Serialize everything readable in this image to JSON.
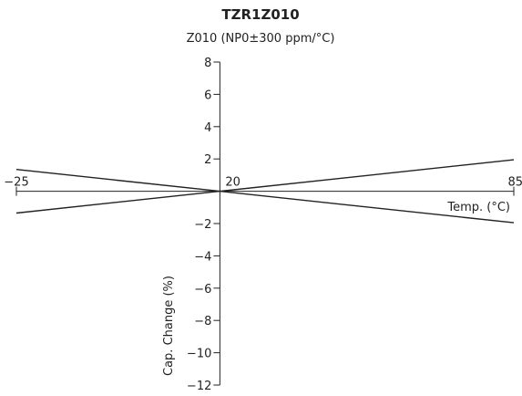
{
  "chart_data": {
    "type": "line",
    "title": "TZR1Z010",
    "subtitle": "Z010 (NP0±300 ppm/°C)",
    "xlabel": "Temp. (°C)",
    "ylabel": "Cap. Change (%)",
    "xlim": [
      -25,
      85
    ],
    "ylim": [
      -12,
      8
    ],
    "x_ticks": [
      {
        "value": -25,
        "label": "−25"
      },
      {
        "value": 20,
        "label": "20"
      },
      {
        "value": 85,
        "label": "85"
      }
    ],
    "y_ticks": [
      {
        "value": 8,
        "label": "8"
      },
      {
        "value": 6,
        "label": "6"
      },
      {
        "value": 4,
        "label": "4"
      },
      {
        "value": 2,
        "label": "2"
      },
      {
        "value": -2,
        "label": "−2"
      },
      {
        "value": -4,
        "label": "−4"
      },
      {
        "value": -6,
        "label": "−6"
      },
      {
        "value": -8,
        "label": "−8"
      },
      {
        "value": -10,
        "label": "−10"
      },
      {
        "value": -12,
        "label": "−12"
      }
    ],
    "series": [
      {
        "x": [
          -25,
          20,
          85
        ],
        "y": [
          1.35,
          0,
          -1.95
        ]
      },
      {
        "x": [
          -25,
          20,
          85
        ],
        "y": [
          -1.35,
          0,
          1.95
        ]
      }
    ],
    "grid": false,
    "line_color": "#222222"
  }
}
